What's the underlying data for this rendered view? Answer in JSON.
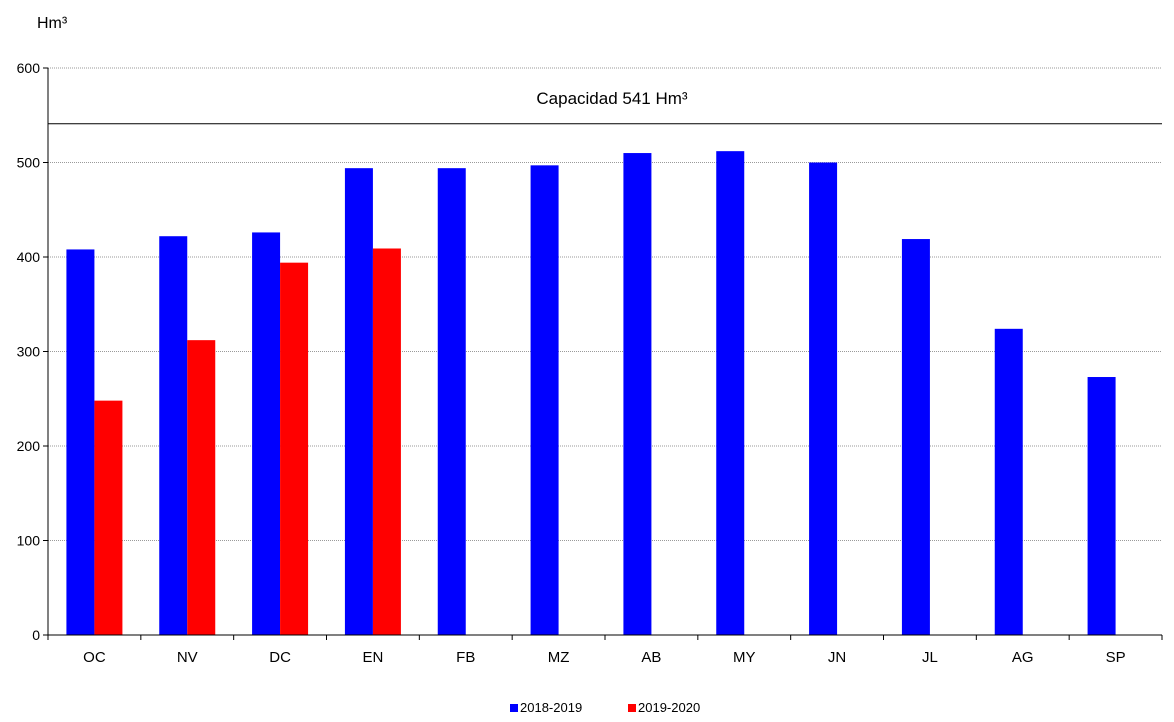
{
  "chart_data": {
    "type": "bar",
    "ylabel": "Hm³",
    "ylim": [
      0,
      600
    ],
    "yticks": [
      0,
      100,
      200,
      300,
      400,
      500,
      600
    ],
    "categories": [
      "OC",
      "NV",
      "DC",
      "EN",
      "FB",
      "MZ",
      "AB",
      "MY",
      "JN",
      "JL",
      "AG",
      "SP"
    ],
    "series": [
      {
        "name": "2018-2019",
        "color": "#0000ff",
        "values": [
          408,
          422,
          426,
          494,
          494,
          497,
          510,
          512,
          500,
          419,
          324,
          273
        ]
      },
      {
        "name": "2019-2020",
        "color": "#ff0000",
        "values": [
          248,
          312,
          394,
          409,
          null,
          null,
          null,
          null,
          null,
          null,
          null,
          null
        ]
      }
    ],
    "reference_line": {
      "value": 541,
      "label": "Capacidad 541 Hm³"
    },
    "grid": true,
    "legend_position": "bottom-center"
  }
}
